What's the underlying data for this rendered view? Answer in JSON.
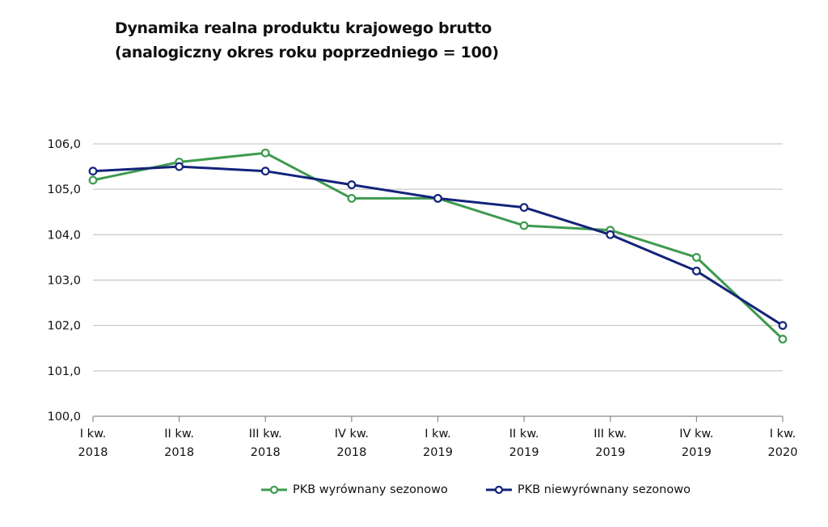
{
  "chart_data": {
    "type": "line",
    "title": "Dynamika realna produktu krajowego brutto",
    "subtitle": "(analogiczny okres roku poprzedniego = 100)",
    "categories": [
      [
        "I kw.",
        "2018"
      ],
      [
        "II kw.",
        "2018"
      ],
      [
        "III kw.",
        "2018"
      ],
      [
        "IV kw.",
        "2018"
      ],
      [
        "I kw.",
        "2019"
      ],
      [
        "II kw.",
        "2019"
      ],
      [
        "III kw.",
        "2019"
      ],
      [
        "IV kw.",
        "2019"
      ],
      [
        "I kw.",
        "2020"
      ]
    ],
    "ylim": [
      100,
      106
    ],
    "yticks": [
      "100,0",
      "101,0",
      "102,0",
      "103,0",
      "104,0",
      "105,0",
      "106,0"
    ],
    "grid": true,
    "legend_position": "bottom",
    "series": [
      {
        "name": "PKB wyrównany sezonowo",
        "color": "#3e9a4f",
        "values": [
          105.2,
          105.6,
          105.8,
          104.8,
          104.8,
          104.2,
          104.1,
          103.5,
          101.7
        ]
      },
      {
        "name": "PKB niewyrównany sezonowo",
        "color": "#13237a",
        "values": [
          105.4,
          105.5,
          105.4,
          105.1,
          104.8,
          104.6,
          104.0,
          103.2,
          102.0
        ]
      }
    ]
  }
}
